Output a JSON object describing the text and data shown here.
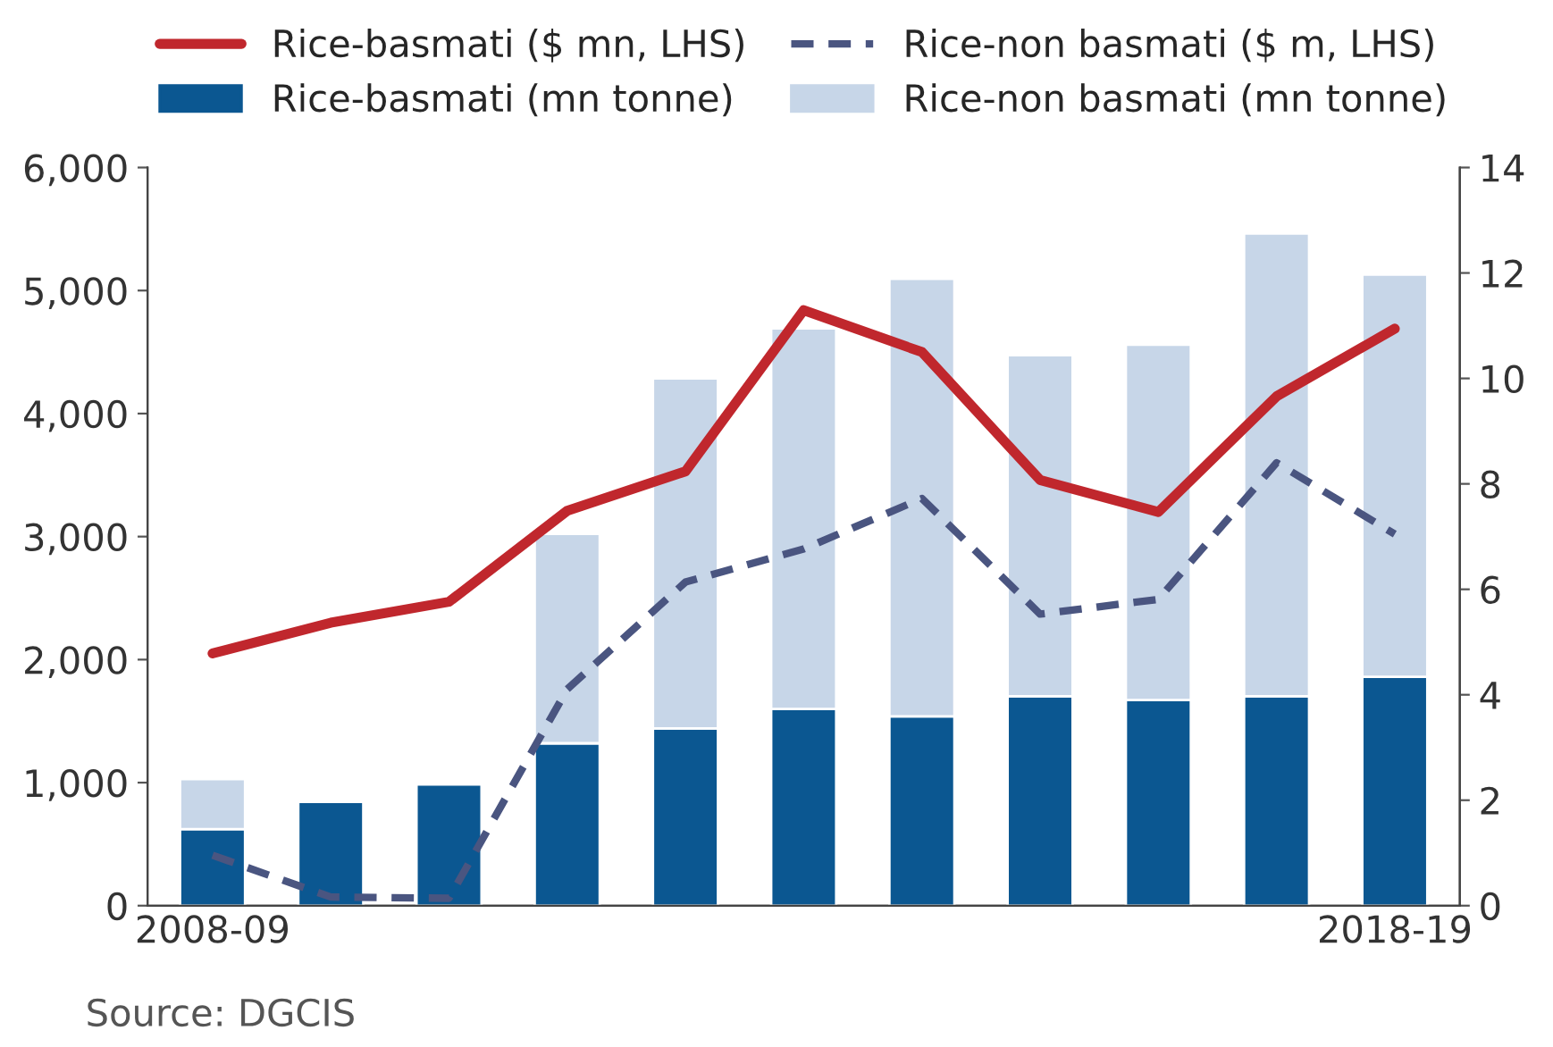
{
  "chart_data": {
    "type": "bar",
    "stacked": true,
    "categories": [
      "2008-09",
      null,
      null,
      null,
      null,
      null,
      null,
      null,
      null,
      null,
      "2018-19"
    ],
    "series": [
      {
        "name": "Rice-basmati (mn tonne)",
        "axis": "y2",
        "color": "#0b5791",
        "values": [
          1.45,
          1.97,
          2.3,
          3.08,
          3.36,
          3.73,
          3.59,
          3.97,
          3.9,
          3.97,
          4.34
        ]
      },
      {
        "name": "Rice-non basmati (mn tonne)",
        "axis": "y2",
        "color": "#c7d6e8",
        "values": [
          0.95,
          null,
          null,
          3.97,
          6.64,
          7.22,
          8.3,
          6.47,
          6.74,
          8.78,
          7.63
        ]
      },
      {
        "name": "Rice-basmati ($ mn, LHS)",
        "type": "line",
        "axis": "y",
        "color": "#c0272d",
        "line_style": "solid",
        "values": [
          2050,
          2300,
          2470,
          3210,
          3530,
          4840,
          4500,
          3460,
          3200,
          4140,
          4690
        ]
      },
      {
        "name": "Rice-non basmati ($ m, LHS)",
        "type": "line",
        "axis": "y",
        "color": "#4a5580",
        "line_style": "dashed",
        "values": [
          410,
          70,
          60,
          1760,
          2630,
          2900,
          3310,
          2370,
          2490,
          3600,
          3020
        ]
      }
    ],
    "ylim": [
      0,
      6000
    ],
    "yticks": [
      {
        "value": 0,
        "label": "0"
      },
      {
        "value": 1000,
        "label": "1,000"
      },
      {
        "value": 2000,
        "label": "2,000"
      },
      {
        "value": 3000,
        "label": "3,000"
      },
      {
        "value": 4000,
        "label": "4,000"
      },
      {
        "value": 5000,
        "label": "5,000"
      },
      {
        "value": 6000,
        "label": "6,000"
      }
    ],
    "y2lim": [
      0,
      14
    ],
    "y2ticks": [
      0,
      2,
      4,
      6,
      8,
      10,
      12,
      14
    ],
    "legend": "top",
    "grid": false,
    "annotations": [
      "Source: DGCIS"
    ]
  }
}
